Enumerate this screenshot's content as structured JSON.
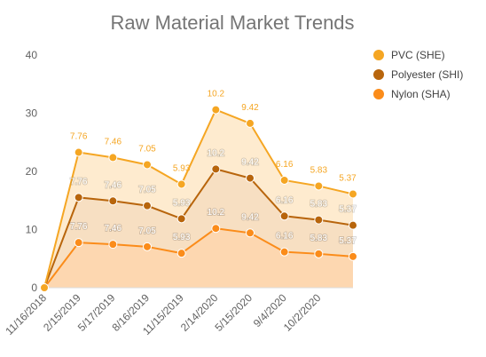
{
  "chart_data": {
    "type": "area",
    "title": "Raw Material Market Trends",
    "xlabel": "",
    "ylabel": "",
    "ylim": [
      0,
      40
    ],
    "yticks": [
      "0",
      "10",
      "20",
      "30",
      "40"
    ],
    "x": [
      "11/16/2018",
      "2/15/2019",
      "5/17/2019",
      "8/16/2019",
      "11/15/2019",
      "2/14/2020",
      "5/15/2020",
      "9/4/2020",
      "10/2/2020",
      ""
    ],
    "series": [
      {
        "name": "Nylon (SHA)",
        "color": "#fb8c1a",
        "fill": "#fdd7b0",
        "values": [
          0,
          7.76,
          7.46,
          7.05,
          5.93,
          10.2,
          9.42,
          6.16,
          5.83,
          5.37
        ]
      },
      {
        "name": "Polyester (SHI)",
        "color": "#b8650c",
        "fill": "#f7dfc2",
        "values": [
          0,
          7.76,
          7.46,
          7.05,
          5.93,
          10.2,
          9.42,
          6.16,
          5.83,
          5.37
        ]
      },
      {
        "name": "PVC (SHE)",
        "color": "#f5a623",
        "fill": "#feebcf",
        "values": [
          0,
          7.76,
          7.46,
          7.05,
          5.93,
          10.2,
          9.42,
          6.16,
          5.83,
          5.37
        ]
      }
    ],
    "stacked": true,
    "grid": false,
    "legend": "right",
    "legend_order": [
      "PVC (SHE)",
      "Polyester (SHI)",
      "Nylon (SHA)"
    ],
    "data_labels": true
  }
}
